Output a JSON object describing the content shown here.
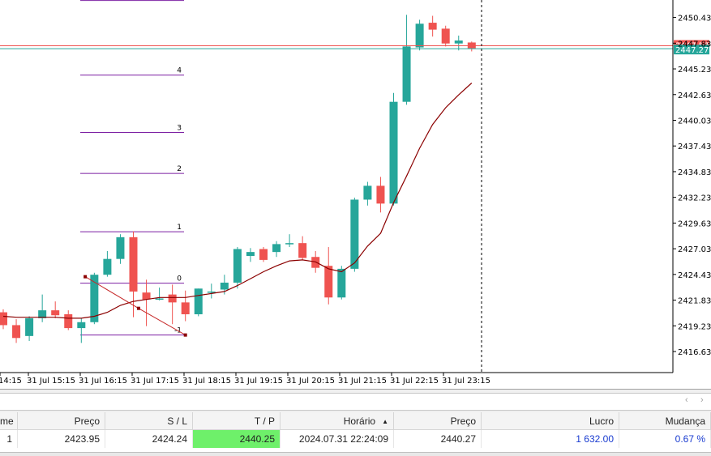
{
  "chart": {
    "price_axis": [
      "2450.43",
      "2447.83",
      "2445.23",
      "2442.63",
      "2440.03",
      "2437.43",
      "2434.83",
      "2432.23",
      "2429.63",
      "2427.03",
      "2424.43",
      "2421.83",
      "2419.23",
      "2416.63"
    ],
    "price_min": 2414.5,
    "price_max": 2452.2,
    "time_labels": [
      "14:15",
      "31 Jul 15:15",
      "31 Jul 16:15",
      "31 Jul 17:15",
      "31 Jul 18:15",
      "31 Jul 19:15",
      "31 Jul 20:15",
      "31 Jul 21:15",
      "31 Jul 22:15",
      "31 Jul 23:15"
    ],
    "bid_price_tag": "2447.27",
    "ask_price_tag": "2447.57",
    "bid_price": 2447.27,
    "ask_price": 2447.57,
    "colors": {
      "bull": "#26a69a",
      "bear": "#ef5350",
      "ma": "#8b0000",
      "fib": "#7b1fa2",
      "bid_line": "#26a69a",
      "ask_line": "#ef5350"
    },
    "fib_levels": [
      {
        "label": "",
        "price": 2452.15
      },
      {
        "label": "4",
        "price": 2444.6
      },
      {
        "label": "3",
        "price": 2438.8
      },
      {
        "label": "2",
        "price": 2434.65
      },
      {
        "label": "1",
        "price": 2428.75
      },
      {
        "label": "0",
        "price": 2423.55
      },
      {
        "label": "-1",
        "price": 2418.3
      }
    ],
    "candles": [
      {
        "o": 2420.6,
        "h": 2420.9,
        "l": 2418.9,
        "c": 2419.3
      },
      {
        "o": 2419.3,
        "h": 2419.9,
        "l": 2417.5,
        "c": 2418.0
      },
      {
        "o": 2418.2,
        "h": 2420.2,
        "l": 2417.7,
        "c": 2420.0
      },
      {
        "o": 2420.0,
        "h": 2422.4,
        "l": 2419.6,
        "c": 2420.8
      },
      {
        "o": 2420.8,
        "h": 2421.7,
        "l": 2420.0,
        "c": 2420.3
      },
      {
        "o": 2420.4,
        "h": 2420.8,
        "l": 2418.8,
        "c": 2419.0
      },
      {
        "o": 2419.0,
        "h": 2420.0,
        "l": 2417.5,
        "c": 2419.6
      },
      {
        "o": 2419.6,
        "h": 2424.6,
        "l": 2419.4,
        "c": 2424.4
      },
      {
        "o": 2424.4,
        "h": 2426.8,
        "l": 2424.2,
        "c": 2426.0
      },
      {
        "o": 2426.0,
        "h": 2428.5,
        "l": 2425.5,
        "c": 2428.2
      },
      {
        "o": 2428.2,
        "h": 2428.8,
        "l": 2420.1,
        "c": 2422.7
      },
      {
        "o": 2422.6,
        "h": 2423.9,
        "l": 2419.2,
        "c": 2421.9
      },
      {
        "o": 2422.0,
        "h": 2423.1,
        "l": 2421.8,
        "c": 2422.0
      },
      {
        "o": 2422.4,
        "h": 2423.4,
        "l": 2419.4,
        "c": 2421.6
      },
      {
        "o": 2421.6,
        "h": 2422.8,
        "l": 2419.7,
        "c": 2420.4
      },
      {
        "o": 2420.4,
        "h": 2423.0,
        "l": 2420.2,
        "c": 2423.0
      },
      {
        "o": 2422.6,
        "h": 2423.5,
        "l": 2422.0,
        "c": 2422.7
      },
      {
        "o": 2422.9,
        "h": 2424.4,
        "l": 2422.4,
        "c": 2423.6
      },
      {
        "o": 2423.6,
        "h": 2427.2,
        "l": 2423.0,
        "c": 2427.0
      },
      {
        "o": 2426.3,
        "h": 2427.1,
        "l": 2425.7,
        "c": 2426.7
      },
      {
        "o": 2427.0,
        "h": 2427.2,
        "l": 2425.7,
        "c": 2425.9
      },
      {
        "o": 2426.7,
        "h": 2427.8,
        "l": 2426.2,
        "c": 2427.5
      },
      {
        "o": 2427.6,
        "h": 2428.5,
        "l": 2427.2,
        "c": 2427.6
      },
      {
        "o": 2427.6,
        "h": 2428.3,
        "l": 2425.9,
        "c": 2426.1
      },
      {
        "o": 2426.2,
        "h": 2426.8,
        "l": 2424.6,
        "c": 2425.1
      },
      {
        "o": 2425.3,
        "h": 2427.2,
        "l": 2421.4,
        "c": 2422.1
      },
      {
        "o": 2422.1,
        "h": 2425.3,
        "l": 2421.9,
        "c": 2425.0
      },
      {
        "o": 2425.0,
        "h": 2432.2,
        "l": 2424.7,
        "c": 2432.0
      },
      {
        "o": 2432.0,
        "h": 2433.8,
        "l": 2431.4,
        "c": 2433.4
      },
      {
        "o": 2433.4,
        "h": 2434.3,
        "l": 2430.7,
        "c": 2431.6
      },
      {
        "o": 2431.6,
        "h": 2442.8,
        "l": 2431.4,
        "c": 2441.9
      },
      {
        "o": 2441.9,
        "h": 2450.7,
        "l": 2441.6,
        "c": 2447.5
      },
      {
        "o": 2447.4,
        "h": 2450.2,
        "l": 2447.1,
        "c": 2449.8
      },
      {
        "o": 2449.9,
        "h": 2450.6,
        "l": 2448.5,
        "c": 2449.2
      },
      {
        "o": 2449.3,
        "h": 2449.6,
        "l": 2447.5,
        "c": 2447.8
      },
      {
        "o": 2447.8,
        "h": 2448.6,
        "l": 2447.1,
        "c": 2448.1
      },
      {
        "o": 2447.9,
        "h": 2448.0,
        "l": 2447.0,
        "c": 2447.3
      }
    ],
    "ma": [
      2420.2,
      2420.1,
      2420.1,
      2420.1,
      2420.1,
      2420.0,
      2420.0,
      2420.2,
      2420.6,
      2421.3,
      2421.7,
      2421.9,
      2422.1,
      2422.1,
      2422.1,
      2422.3,
      2422.5,
      2422.7,
      2423.3,
      2424.0,
      2424.7,
      2425.3,
      2425.8,
      2425.9,
      2425.7,
      2425.0,
      2424.7,
      2425.6,
      2427.3,
      2428.6,
      2431.7,
      2434.4,
      2437.2,
      2439.6,
      2441.3,
      2442.6,
      2443.8
    ],
    "drawing_line": [
      {
        "bar": 6.3,
        "price": 2424.2
      },
      {
        "bar": 10.4,
        "price": 2421.0
      },
      {
        "bar": 14.0,
        "price": 2418.3
      }
    ]
  },
  "terminal": {
    "columns": [
      "me",
      "Preço",
      "S / L",
      "T / P",
      "Horário",
      "",
      "Preço",
      "Lucro",
      "Mudança"
    ],
    "row": {
      "volume": "1",
      "open_price": "2423.95",
      "sl": "2424.24",
      "tp": "2440.25",
      "time": "2024.07.31 22:24:09",
      "current_price": "2440.27",
      "profit": "1 632.00",
      "change": "0.67 %"
    },
    "scroll_left": "‹",
    "scroll_right": "›"
  }
}
